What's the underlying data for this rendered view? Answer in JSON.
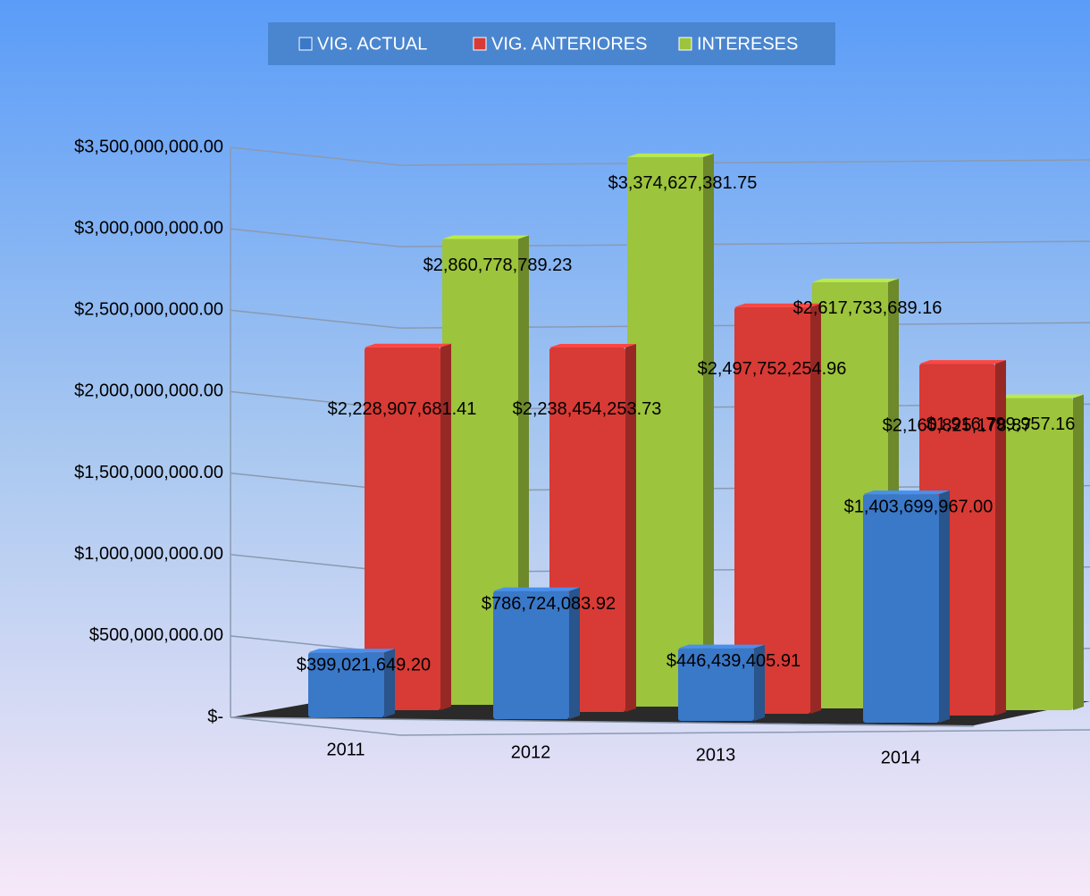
{
  "chart_data": {
    "type": "bar3d",
    "categories": [
      "2011",
      "2012",
      "2013",
      "2014"
    ],
    "series": [
      {
        "name": "VIG. ACTUAL",
        "color": "#3a78c8",
        "values": [
          399021649.2,
          786724083.92,
          446439405.91,
          1403699967.0
        ],
        "value_labels": [
          "$399,021,649.20",
          "$786,724,083.92",
          "$446,439,405.91",
          "$1,403,699,967.00"
        ]
      },
      {
        "name": "VIG. ANTERIORES",
        "color": "#d83a35",
        "values": [
          2228907681.41,
          2238454253.73,
          2497752254.96,
          2160825178.87
        ],
        "value_labels": [
          "$2,228,907,681.41",
          "$2,238,454,253.73",
          "$2,497,752,254.96",
          "$2,160,825,178.87"
        ]
      },
      {
        "name": "INTERESES",
        "color": "#9cc43c",
        "values": [
          2860778789.23,
          3374627381.75,
          2617733689.16,
          1916799957.16
        ],
        "value_labels": [
          "$2,860,778,789.23",
          "$3,374,627,381.75",
          "$2,617,733,689.16",
          "$1,916,799,957.16"
        ]
      }
    ],
    "ylim": [
      0,
      3500000000
    ],
    "yticks": [
      {
        "value": 0,
        "label": "$-"
      },
      {
        "value": 500000000,
        "label": "$500,000,000.00"
      },
      {
        "value": 1000000000,
        "label": "$1,000,000,000.00"
      },
      {
        "value": 1500000000,
        "label": "$1,500,000,000.00"
      },
      {
        "value": 2000000000,
        "label": "$2,000,000,000.00"
      },
      {
        "value": 2500000000,
        "label": "$2,500,000,000.00"
      },
      {
        "value": 3000000000,
        "label": "$3,000,000,000.00"
      },
      {
        "value": 3500000000,
        "label": "$3,500,000,000.00"
      }
    ],
    "grid": true,
    "legend": "top"
  }
}
